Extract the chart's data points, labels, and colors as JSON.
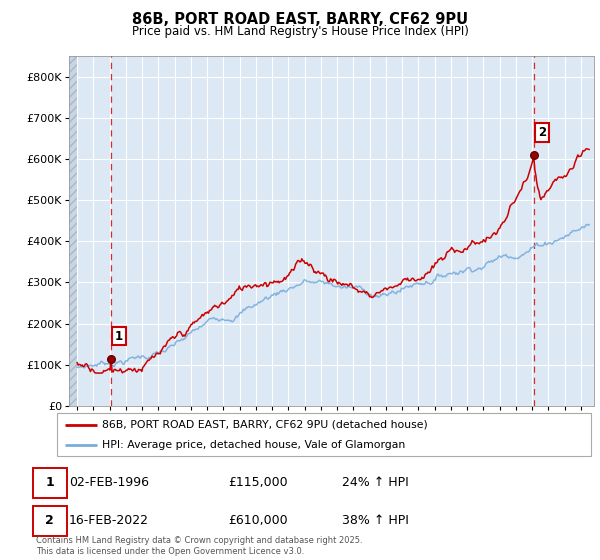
{
  "title1": "86B, PORT ROAD EAST, BARRY, CF62 9PU",
  "title2": "Price paid vs. HM Land Registry's House Price Index (HPI)",
  "ylabel_ticks": [
    "£0",
    "£100K",
    "£200K",
    "£300K",
    "£400K",
    "£500K",
    "£600K",
    "£700K",
    "£800K"
  ],
  "ytick_vals": [
    0,
    100000,
    200000,
    300000,
    400000,
    500000,
    600000,
    700000,
    800000
  ],
  "ylim": [
    0,
    850000
  ],
  "xlim_start": 1993.5,
  "xlim_end": 2025.8,
  "marker1_x": 1996.09,
  "marker1_y": 115000,
  "marker1_label": "1",
  "marker2_x": 2022.12,
  "marker2_y": 610000,
  "marker2_label": "2",
  "annotation1": {
    "date": "02-FEB-1996",
    "price": "£115,000",
    "hpi": "24% ↑ HPI"
  },
  "annotation2": {
    "date": "16-FEB-2022",
    "price": "£610,000",
    "hpi": "38% ↑ HPI"
  },
  "legend_line1": "86B, PORT ROAD EAST, BARRY, CF62 9PU (detached house)",
  "legend_line2": "HPI: Average price, detached house, Vale of Glamorgan",
  "line1_color": "#cc0000",
  "line2_color": "#7aaddb",
  "marker_box_color": "#cc0000",
  "footer": "Contains HM Land Registry data © Crown copyright and database right 2025.\nThis data is licensed under the Open Government Licence v3.0.",
  "background_color": "#ffffff",
  "plot_bg_color": "#dce9f5",
  "grid_color": "#ffffff",
  "hatch_color": "#b8c8d8"
}
